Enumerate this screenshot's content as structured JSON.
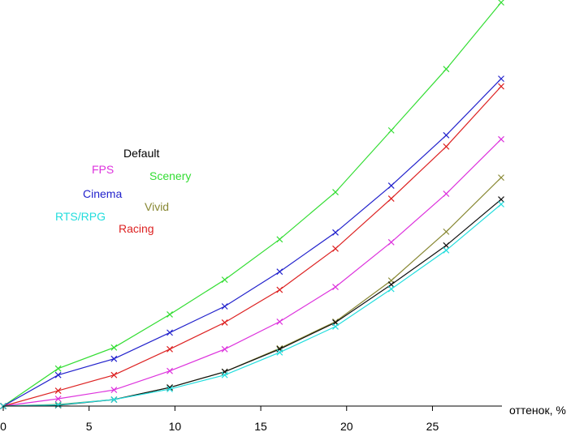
{
  "chart_data": {
    "type": "line",
    "title": "",
    "xlabel": "оттенок, %",
    "ylabel": "",
    "xlim": [
      0,
      29
    ],
    "ylim": [
      0,
      100
    ],
    "grid": false,
    "x_ticks": [
      "0",
      "5",
      "10",
      "15",
      "20",
      "25"
    ],
    "x": [
      0,
      3.2,
      6.45,
      9.7,
      12.9,
      16.1,
      19.35,
      22.6,
      25.8,
      29
    ],
    "series": [
      {
        "name": "Scenery",
        "color": "#33dd33",
        "values": [
          0,
          9.3,
          14.5,
          22.7,
          31.3,
          41.3,
          53.0,
          68.3,
          83.5,
          100
        ]
      },
      {
        "name": "Cinema",
        "color": "#2222cc",
        "values": [
          0,
          7.7,
          11.7,
          18.2,
          24.7,
          33.3,
          43.0,
          54.6,
          67.1,
          81.1
        ]
      },
      {
        "name": "Racing",
        "color": "#dd2222",
        "values": [
          0,
          3.8,
          7.7,
          14.1,
          20.7,
          28.8,
          39.0,
          51.4,
          64.3,
          79.2
        ]
      },
      {
        "name": "FPS",
        "color": "#dd33dd",
        "values": [
          0,
          1.8,
          4.0,
          8.7,
          14.1,
          20.9,
          29.5,
          40.6,
          52.6,
          66.1
        ]
      },
      {
        "name": "Vivid",
        "color": "#888833",
        "values": [
          0,
          0.4,
          1.6,
          4.6,
          8.5,
          14.3,
          20.9,
          31.1,
          43.2,
          56.6
        ]
      },
      {
        "name": "Default",
        "color": "#111111",
        "values": [
          0,
          0.2,
          1.6,
          4.6,
          8.5,
          14.1,
          20.7,
          30.1,
          39.8,
          51.2
        ]
      },
      {
        "name": "RTS/RPG",
        "color": "#22dddd",
        "values": [
          0,
          0.3,
          1.6,
          4.2,
          7.7,
          13.3,
          19.7,
          29.0,
          38.6,
          50.0
        ]
      }
    ]
  }
}
